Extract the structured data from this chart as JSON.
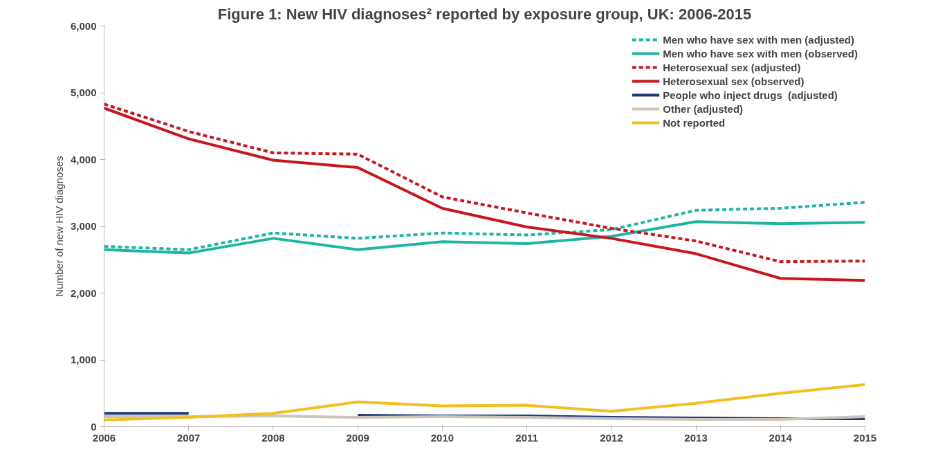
{
  "chart_data": {
    "type": "line",
    "title": "Figure 1: New HIV diagnoses² reported by exposure group, UK: 2006-2015",
    "ylabel": "Number of new HIV diagnoses",
    "x": [
      2006,
      2007,
      2008,
      2009,
      2010,
      2011,
      2012,
      2013,
      2014,
      2015
    ],
    "series": [
      {
        "name": "Men who have sex with men (adjusted)",
        "color": "#1fb5a5",
        "line_style": "dashed",
        "values": [
          2700,
          2650,
          2900,
          2820,
          2900,
          2870,
          2950,
          3240,
          3270,
          3360
        ]
      },
      {
        "name": "Men who have sex with men (observed)",
        "color": "#1fb5a5",
        "line_style": "solid",
        "values": [
          2650,
          2600,
          2820,
          2650,
          2770,
          2740,
          2850,
          3070,
          3040,
          3060
        ]
      },
      {
        "name": "Heterosexual sex (adjusted)",
        "color": "#c8161d",
        "line_style": "dashed",
        "values": [
          4830,
          4420,
          4100,
          4080,
          3440,
          3200,
          2970,
          2780,
          2470,
          2480
        ]
      },
      {
        "name": "Heterosexual sex (observed)",
        "color": "#c8161d",
        "line_style": "solid",
        "values": [
          4770,
          4310,
          3990,
          3880,
          3270,
          2990,
          2820,
          2590,
          2220,
          2190
        ]
      },
      {
        "name": "People who inject drugs  (adjusted)",
        "color": "#1f3a7a",
        "line_style": "solid",
        "values": [
          200,
          200,
          null,
          170,
          160,
          160,
          140,
          130,
          120,
          120
        ]
      },
      {
        "name": "Other (adjusted)",
        "color": "#cdc3b8",
        "line_style": "solid",
        "values": [
          150,
          150,
          160,
          140,
          150,
          140,
          120,
          110,
          110,
          150
        ]
      },
      {
        "name": "Not reported",
        "color": "#f2bf1f",
        "line_style": "solid",
        "values": [
          100,
          140,
          200,
          370,
          310,
          320,
          230,
          350,
          500,
          630
        ]
      }
    ],
    "xlim": [
      2006,
      2015
    ],
    "xticks": [
      2006,
      2007,
      2008,
      2009,
      2010,
      2011,
      2012,
      2013,
      2014,
      2015
    ],
    "ylim": [
      0,
      6000
    ],
    "yticks": [
      {
        "value": 0,
        "label": "0"
      },
      {
        "value": 1000,
        "label": "1,000"
      },
      {
        "value": 2000,
        "label": "2,000"
      },
      {
        "value": 3000,
        "label": "3,000"
      },
      {
        "value": 4000,
        "label": "4,000"
      },
      {
        "value": 5000,
        "label": "5,000"
      },
      {
        "value": 6000,
        "label": "6,000"
      }
    ],
    "grid": false,
    "legend": "top right",
    "marker": "none"
  }
}
